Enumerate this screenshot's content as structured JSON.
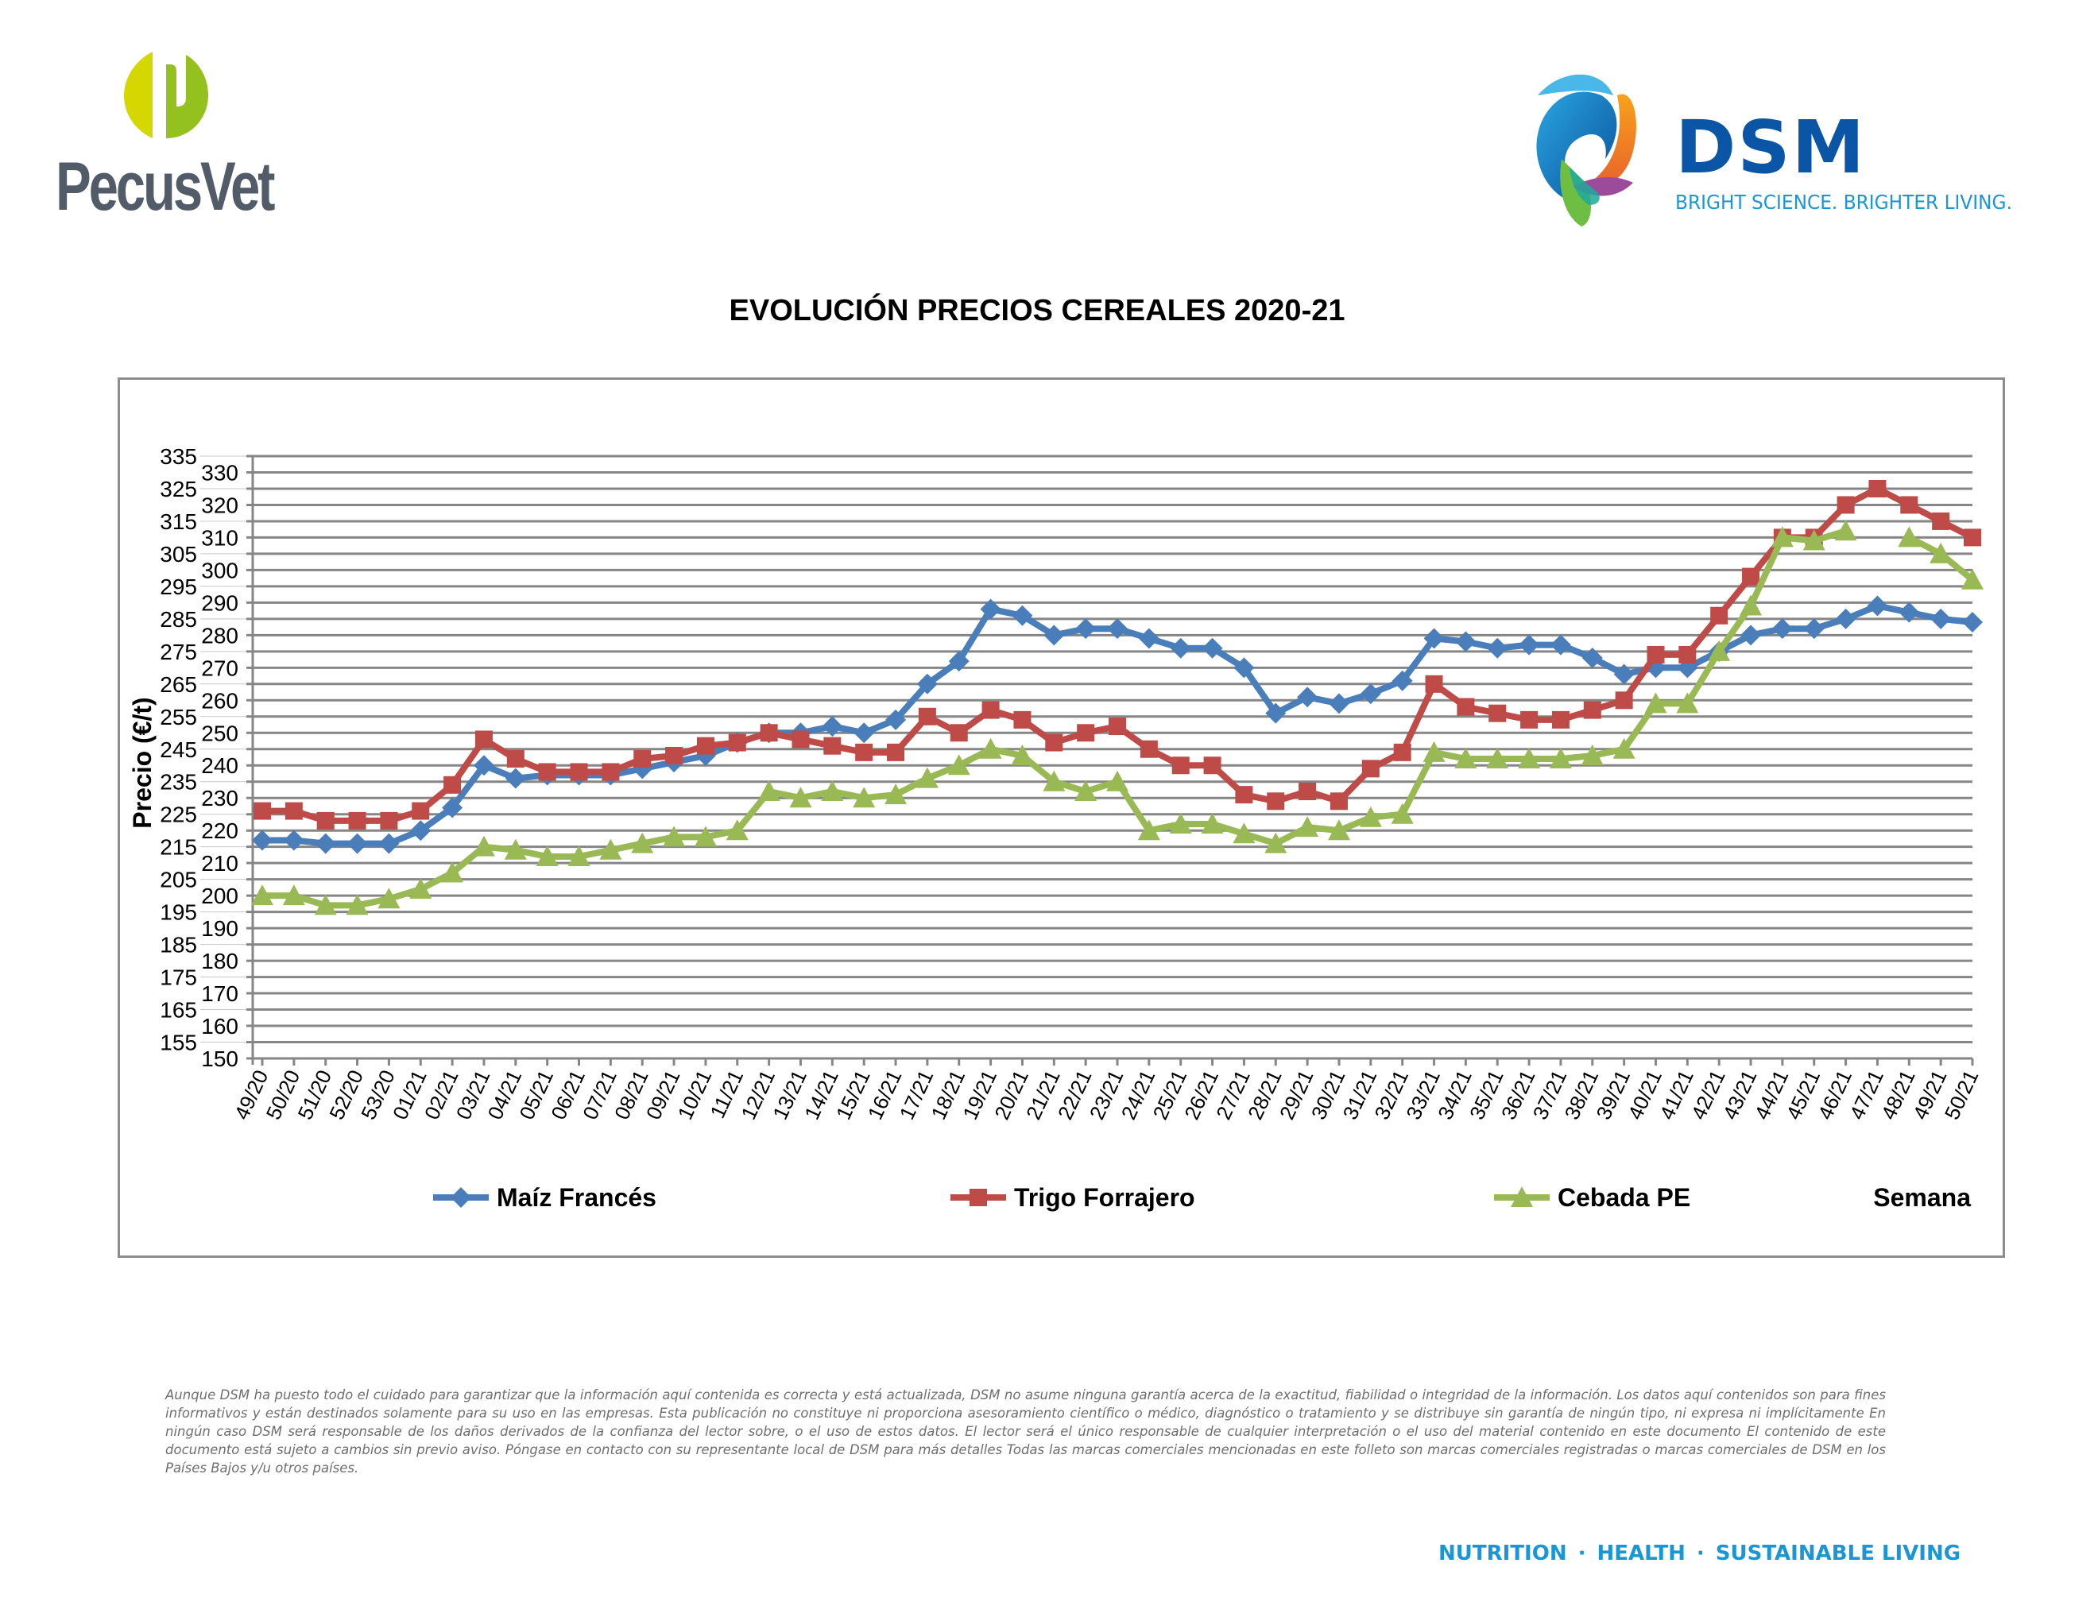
{
  "header": {
    "left_logo": {
      "brand": "PecusVet",
      "mark_letter": "P",
      "colors": {
        "light": "#d4d800",
        "dark": "#95c11f",
        "text": "#525c69"
      }
    },
    "right_logo": {
      "brand": "DSM",
      "tagline": "BRIGHT SCIENCE. BRIGHTER LIVING.",
      "colors": {
        "brand": "#0a55a5",
        "tagline": "#1a96d6"
      }
    }
  },
  "chart_data": {
    "type": "line",
    "title": "EVOLUCIÓN PRECIOS CEREALES 2020-21",
    "xlabel": "Semana",
    "ylabel": "Precio (€/t)",
    "ylim": [
      150,
      335
    ],
    "ytick_step": 5,
    "grid": true,
    "legend_position": "bottom",
    "categories": [
      "49/20",
      "50/20",
      "51/20",
      "52/20",
      "53/20",
      "01/21",
      "02/21",
      "03/21",
      "04/21",
      "05/21",
      "06/21",
      "07/21",
      "08/21",
      "09/21",
      "10/21",
      "11/21",
      "12/21",
      "13/21",
      "14/21",
      "15/21",
      "16/21",
      "17/21",
      "18/21",
      "19/21",
      "20/21",
      "21/21",
      "22/21",
      "23/21",
      "24/21",
      "25/21",
      "26/21",
      "27/21",
      "28/21",
      "29/21",
      "30/21",
      "31/21",
      "32/21",
      "33/21",
      "34/21",
      "35/21",
      "36/21",
      "37/21",
      "38/21",
      "39/21",
      "40/21",
      "41/21",
      "42/21",
      "43/21",
      "44/21",
      "45/21",
      "46/21",
      "47/21",
      "48/21",
      "49/21",
      "50/21"
    ],
    "series": [
      {
        "name": "Maíz Francés",
        "color": "#4a7ebb",
        "marker": "diamond",
        "values": [
          217,
          217,
          216,
          216,
          216,
          220,
          227,
          240,
          236,
          237,
          237,
          237,
          239,
          241,
          243,
          247,
          250,
          250,
          252,
          250,
          254,
          265,
          272,
          288,
          286,
          280,
          282,
          282,
          279,
          276,
          276,
          270,
          256,
          261,
          259,
          262,
          266,
          279,
          278,
          276,
          277,
          277,
          273,
          268,
          270,
          270,
          275,
          280,
          282,
          282,
          285,
          289,
          287,
          285,
          284
        ]
      },
      {
        "name": "Trigo Forrajero",
        "color": "#be4b48",
        "marker": "square",
        "values": [
          226,
          226,
          223,
          223,
          223,
          226,
          234,
          248,
          242,
          238,
          238,
          238,
          242,
          243,
          246,
          247,
          250,
          248,
          246,
          244,
          244,
          255,
          250,
          257,
          254,
          247,
          250,
          252,
          245,
          240,
          240,
          231,
          229,
          232,
          229,
          239,
          244,
          265,
          258,
          256,
          254,
          254,
          257,
          260,
          274,
          274,
          286,
          298,
          310,
          310,
          320,
          325,
          320,
          315,
          310
        ]
      },
      {
        "name": "Cebada PE",
        "color": "#98b954",
        "marker": "triangle",
        "values": [
          200,
          200,
          197,
          197,
          199,
          202,
          207,
          215,
          214,
          212,
          212,
          214,
          216,
          218,
          218,
          220,
          232,
          230,
          232,
          230,
          231,
          236,
          240,
          245,
          243,
          235,
          232,
          235,
          220,
          222,
          222,
          219,
          216,
          221,
          220,
          224,
          225,
          244,
          242,
          242,
          242,
          242,
          243,
          245,
          259,
          259,
          275,
          289,
          310,
          309,
          312,
          null,
          310,
          305,
          297
        ]
      }
    ]
  },
  "footer": {
    "disclaimer": "Aunque DSM ha puesto todo el cuidado para garantizar que la información aquí contenida es correcta y está actualizada, DSM no asume ninguna garantía acerca de la exactitud, fiabilidad o integridad de la información. Los datos aquí contenidos son para fines informativos y están destinados solamente para su uso en las empresas. Esta publicación no constituye ni proporciona asesoramiento científico o médico, diagnóstico o tratamiento y se distribuye sin garantía de ningún tipo, ni expresa ni implícitamente En ningún caso DSM será responsable de los daños derivados de la confianza del lector sobre, o el uso de estos datos. El lector será el único responsable de cualquier interpretación o el uso del material contenido en este documento El contenido de este documento está sujeto a cambios sin previo aviso. Póngase en contacto con su representante local de DSM para más detalles Todas las marcas comerciales mencionadas en este folleto son marcas comerciales registradas o marcas comerciales de DSM en los Países Bajos y/u otros países.",
    "tagline_parts": [
      "NUTRITION",
      "HEALTH",
      "SUSTAINABLE LIVING"
    ]
  }
}
